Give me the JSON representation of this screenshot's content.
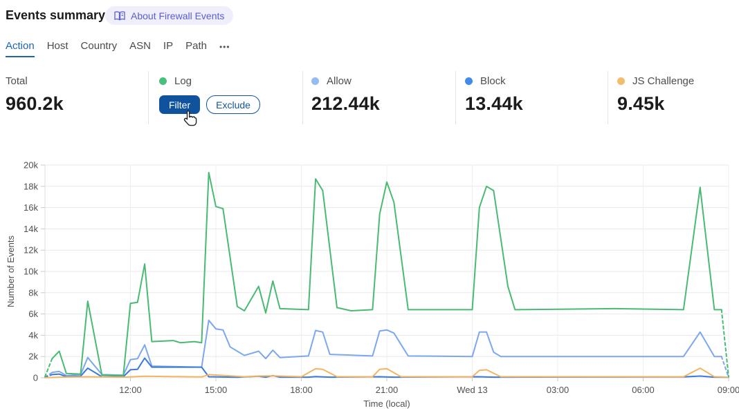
{
  "header": {
    "title": "Events summary",
    "about_link": "About Firewall Events"
  },
  "tabs": {
    "items": [
      "Action",
      "Host",
      "Country",
      "ASN",
      "IP",
      "Path"
    ],
    "active": "Action",
    "overflow": "•••"
  },
  "stats": {
    "total": {
      "label": "Total",
      "value": "960.2k"
    },
    "log": {
      "label": "Log",
      "dot_color": "#49c07b",
      "filter_label": "Filter",
      "exclude_label": "Exclude"
    },
    "allow": {
      "label": "Allow",
      "value": "212.44k",
      "dot_color": "#95bbf2"
    },
    "block": {
      "label": "Block",
      "value": "13.44k",
      "dot_color": "#418ceb"
    },
    "js_challenge": {
      "label": "JS Challenge",
      "value": "9.45k",
      "dot_color": "#f3bd6e"
    }
  },
  "accent_colors": {
    "link_purple": "#5a5cd6",
    "active_tab_blue": "#1b65b5",
    "button_blue": "#10539c"
  },
  "chart_data": {
    "type": "line",
    "xlabel": "Time (local)",
    "ylabel": "Number of Events",
    "x_unit": "minutes after 09:00 local",
    "x_domain": [
      0,
      1440
    ],
    "ylim": [
      0,
      20000
    ],
    "grid": true,
    "y_ticks": [
      {
        "v": 0,
        "label": "0"
      },
      {
        "v": 2000,
        "label": "2k"
      },
      {
        "v": 4000,
        "label": "4k"
      },
      {
        "v": 6000,
        "label": "6k"
      },
      {
        "v": 8000,
        "label": "8k"
      },
      {
        "v": 10000,
        "label": "10k"
      },
      {
        "v": 12000,
        "label": "12k"
      },
      {
        "v": 14000,
        "label": "14k"
      },
      {
        "v": 16000,
        "label": "16k"
      },
      {
        "v": 18000,
        "label": "18k"
      },
      {
        "v": 20000,
        "label": "20k"
      }
    ],
    "x_ticks": [
      {
        "t": 180,
        "label": "12:00"
      },
      {
        "t": 360,
        "label": "15:00"
      },
      {
        "t": 540,
        "label": "18:00"
      },
      {
        "t": 720,
        "label": "21:00"
      },
      {
        "t": 900,
        "label": "Wed 13"
      },
      {
        "t": 1080,
        "label": "03:00"
      },
      {
        "t": 1260,
        "label": "06:00"
      },
      {
        "t": 1440,
        "label": "09:00"
      }
    ],
    "series": [
      {
        "name": "Allow",
        "color": "#7aa7f0",
        "dashed_start": true,
        "dashed_end": true,
        "points": [
          [
            0,
            50
          ],
          [
            15,
            500
          ],
          [
            30,
            600
          ],
          [
            45,
            200
          ],
          [
            75,
            300
          ],
          [
            90,
            1900
          ],
          [
            120,
            300
          ],
          [
            165,
            250
          ],
          [
            180,
            1700
          ],
          [
            195,
            1800
          ],
          [
            210,
            3100
          ],
          [
            225,
            1100
          ],
          [
            330,
            1000
          ],
          [
            345,
            5400
          ],
          [
            360,
            4600
          ],
          [
            375,
            4500
          ],
          [
            390,
            2900
          ],
          [
            420,
            2100
          ],
          [
            450,
            2500
          ],
          [
            465,
            1800
          ],
          [
            480,
            2600
          ],
          [
            495,
            1900
          ],
          [
            555,
            2050
          ],
          [
            570,
            4450
          ],
          [
            585,
            4300
          ],
          [
            600,
            2200
          ],
          [
            690,
            2050
          ],
          [
            705,
            4400
          ],
          [
            720,
            4500
          ],
          [
            735,
            4200
          ],
          [
            765,
            2050
          ],
          [
            900,
            2000
          ],
          [
            915,
            4300
          ],
          [
            930,
            4300
          ],
          [
            945,
            2400
          ],
          [
            960,
            2000
          ],
          [
            1345,
            2000
          ],
          [
            1380,
            4300
          ],
          [
            1410,
            2000
          ],
          [
            1425,
            2000
          ],
          [
            1440,
            50
          ]
        ]
      },
      {
        "name": "Block",
        "color": "#3a78dd",
        "dashed_start": true,
        "dashed_end": false,
        "points": [
          [
            0,
            50
          ],
          [
            15,
            300
          ],
          [
            30,
            350
          ],
          [
            45,
            100
          ],
          [
            75,
            150
          ],
          [
            90,
            900
          ],
          [
            120,
            100
          ],
          [
            165,
            100
          ],
          [
            180,
            750
          ],
          [
            195,
            800
          ],
          [
            210,
            1850
          ],
          [
            225,
            1000
          ],
          [
            330,
            1000
          ],
          [
            345,
            100
          ],
          [
            405,
            50
          ],
          [
            450,
            150
          ],
          [
            465,
            60
          ],
          [
            480,
            200
          ],
          [
            495,
            60
          ],
          [
            555,
            60
          ],
          [
            570,
            120
          ],
          [
            600,
            60
          ],
          [
            705,
            100
          ],
          [
            735,
            60
          ],
          [
            915,
            100
          ],
          [
            945,
            60
          ],
          [
            1345,
            80
          ],
          [
            1380,
            160
          ],
          [
            1410,
            60
          ],
          [
            1440,
            50
          ]
        ]
      },
      {
        "name": "JS Challenge",
        "color": "#f1b562",
        "dashed_start": false,
        "dashed_end": false,
        "points": [
          [
            0,
            20
          ],
          [
            30,
            60
          ],
          [
            90,
            100
          ],
          [
            165,
            60
          ],
          [
            210,
            150
          ],
          [
            330,
            80
          ],
          [
            345,
            300
          ],
          [
            375,
            220
          ],
          [
            420,
            100
          ],
          [
            450,
            160
          ],
          [
            480,
            180
          ],
          [
            540,
            100
          ],
          [
            570,
            850
          ],
          [
            585,
            800
          ],
          [
            615,
            100
          ],
          [
            690,
            100
          ],
          [
            705,
            800
          ],
          [
            720,
            850
          ],
          [
            750,
            100
          ],
          [
            900,
            100
          ],
          [
            915,
            700
          ],
          [
            930,
            750
          ],
          [
            960,
            100
          ],
          [
            1345,
            100
          ],
          [
            1380,
            900
          ],
          [
            1410,
            100
          ],
          [
            1440,
            60
          ]
        ]
      },
      {
        "name": "Log",
        "color": "#48ba72",
        "dashed_start": true,
        "dashed_end": true,
        "points": [
          [
            0,
            100
          ],
          [
            15,
            1800
          ],
          [
            30,
            2500
          ],
          [
            45,
            400
          ],
          [
            75,
            350
          ],
          [
            90,
            7200
          ],
          [
            120,
            250
          ],
          [
            165,
            200
          ],
          [
            180,
            7000
          ],
          [
            195,
            7100
          ],
          [
            210,
            10700
          ],
          [
            225,
            3400
          ],
          [
            270,
            3500
          ],
          [
            285,
            3300
          ],
          [
            315,
            3400
          ],
          [
            330,
            3300
          ],
          [
            345,
            19300
          ],
          [
            360,
            16100
          ],
          [
            375,
            15900
          ],
          [
            405,
            6700
          ],
          [
            420,
            6300
          ],
          [
            450,
            8600
          ],
          [
            465,
            6100
          ],
          [
            480,
            9100
          ],
          [
            495,
            6500
          ],
          [
            555,
            6400
          ],
          [
            570,
            18700
          ],
          [
            585,
            17600
          ],
          [
            615,
            6600
          ],
          [
            645,
            6300
          ],
          [
            690,
            6400
          ],
          [
            705,
            15400
          ],
          [
            720,
            18400
          ],
          [
            735,
            16500
          ],
          [
            765,
            6400
          ],
          [
            900,
            6400
          ],
          [
            915,
            16000
          ],
          [
            930,
            18000
          ],
          [
            945,
            17600
          ],
          [
            975,
            8600
          ],
          [
            990,
            6400
          ],
          [
            1200,
            6500
          ],
          [
            1345,
            6400
          ],
          [
            1380,
            17900
          ],
          [
            1410,
            6400
          ],
          [
            1425,
            6400
          ],
          [
            1440,
            100
          ]
        ]
      }
    ]
  }
}
